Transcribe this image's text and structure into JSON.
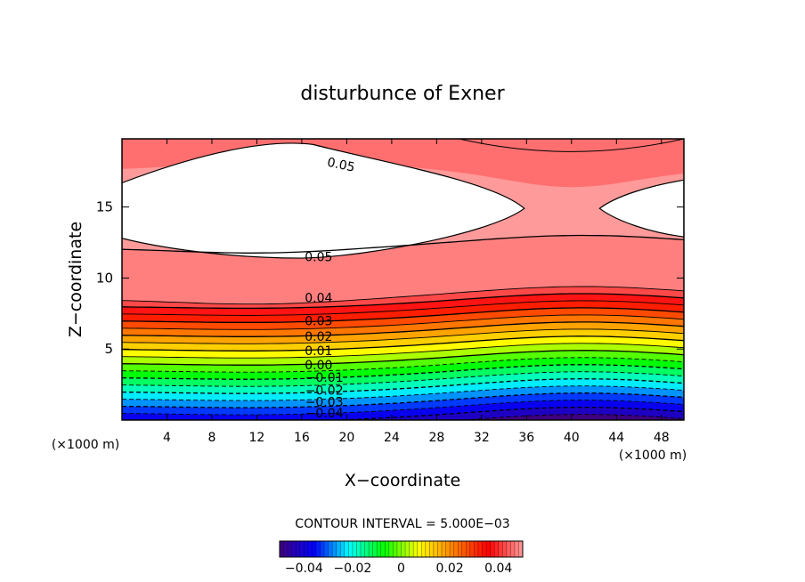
{
  "chart_data": {
    "type": "heatmap",
    "title": "disturbunce of Exner",
    "xlabel": "X−coordinate",
    "ylabel": "Z−coordinate",
    "x_unit": "(×1000 m)",
    "y_unit": "(×1000 m)",
    "xlim": [
      0,
      50
    ],
    "ylim": [
      0,
      19.8
    ],
    "x_ticks": [
      4,
      8,
      12,
      16,
      20,
      24,
      28,
      32,
      36,
      40,
      44,
      48
    ],
    "y_ticks": [
      5,
      10,
      15
    ],
    "contour_interval_text": "CONTOUR INTERVAL = 5.000E−03",
    "contour_interval": 0.005,
    "contour_levels_range": [
      -0.045,
      0.05
    ],
    "color_range": [
      -0.05,
      0.05
    ],
    "colormap": [
      "#400080",
      "#0000ff",
      "#00ffff",
      "#00ff00",
      "#ffff00",
      "#ff8000",
      "#ff0000",
      "#ff9a9a"
    ],
    "above_max_color": "#ffffff",
    "negative_line_style": "dashed",
    "contour_labels": [
      {
        "text": "0.05",
        "x": 19.5,
        "z": 18.0
      },
      {
        "text": "0.05",
        "x": 17.5,
        "z": 11.5
      },
      {
        "text": "0.04",
        "x": 17.5,
        "z": 8.6
      },
      {
        "text": "0.03",
        "x": 17.5,
        "z": 7.0
      },
      {
        "text": "0.02",
        "x": 17.5,
        "z": 5.9
      },
      {
        "text": "0.01",
        "x": 17.5,
        "z": 4.9
      },
      {
        "text": "0.00",
        "x": 17.5,
        "z": 3.9
      },
      {
        "text": "−0.01",
        "x": 18.0,
        "z": 3.0
      },
      {
        "text": "−0.02",
        "x": 18.0,
        "z": 2.1
      },
      {
        "text": "−0.03",
        "x": 18.0,
        "z": 1.3
      },
      {
        "text": "−0.04",
        "x": 18.0,
        "z": 0.5
      }
    ],
    "colorbar": {
      "range": [
        -0.05,
        0.05
      ],
      "tick_labels": [
        "−0.04",
        "−0.02",
        "0",
        "0.02",
        "0.04"
      ],
      "tick_values": [
        -0.04,
        -0.02,
        0,
        0.02,
        0.04
      ]
    }
  }
}
